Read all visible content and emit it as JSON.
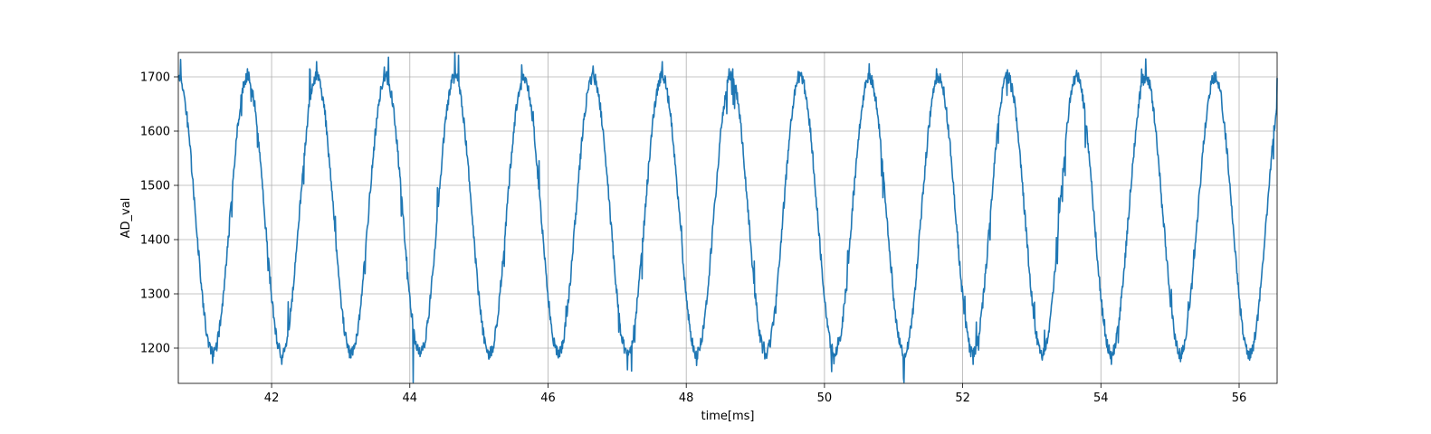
{
  "chart_data": {
    "type": "line",
    "title": "",
    "xlabel": "time[ms]",
    "ylabel": "AD_val",
    "xlim": [
      40.65,
      56.55
    ],
    "ylim": [
      1135,
      1745
    ],
    "xticks": [
      42,
      44,
      46,
      48,
      50,
      52,
      54,
      56
    ],
    "yticks": [
      1200,
      1300,
      1400,
      1500,
      1600,
      1700
    ],
    "grid": true,
    "legend": "none",
    "series": [
      {
        "color": "#1f77b4",
        "signal": {
          "shape": "noisy-sine",
          "period_ms": 1.0,
          "center": 1445,
          "amplitude": 255,
          "first_peak_ms": 41.65,
          "x_start": 40.65,
          "x_end": 56.55
        },
        "peaks": [
          {
            "x": 40.68,
            "y": 1732
          },
          {
            "x": 41.65,
            "y": 1715
          },
          {
            "x": 42.65,
            "y": 1728
          },
          {
            "x": 43.63,
            "y": 1718
          },
          {
            "x": 44.65,
            "y": 1745
          },
          {
            "x": 45.62,
            "y": 1722
          },
          {
            "x": 46.65,
            "y": 1720
          },
          {
            "x": 47.65,
            "y": 1728
          },
          {
            "x": 48.62,
            "y": 1715
          },
          {
            "x": 49.62,
            "y": 1710
          },
          {
            "x": 50.65,
            "y": 1724
          },
          {
            "x": 51.62,
            "y": 1715
          },
          {
            "x": 52.65,
            "y": 1713
          },
          {
            "x": 53.65,
            "y": 1712
          },
          {
            "x": 54.65,
            "y": 1733
          },
          {
            "x": 55.62,
            "y": 1688
          },
          {
            "x": 56.55,
            "y": 1698
          }
        ],
        "troughs": [
          {
            "x": 41.15,
            "y": 1172
          },
          {
            "x": 42.15,
            "y": 1170
          },
          {
            "x": 43.15,
            "y": 1182
          },
          {
            "x": 44.05,
            "y": 1137
          },
          {
            "x": 45.15,
            "y": 1180
          },
          {
            "x": 46.15,
            "y": 1182
          },
          {
            "x": 47.15,
            "y": 1160
          },
          {
            "x": 48.15,
            "y": 1168
          },
          {
            "x": 49.15,
            "y": 1190
          },
          {
            "x": 50.1,
            "y": 1185
          },
          {
            "x": 51.15,
            "y": 1137
          },
          {
            "x": 52.15,
            "y": 1170
          },
          {
            "x": 53.15,
            "y": 1178
          },
          {
            "x": 54.15,
            "y": 1170
          },
          {
            "x": 55.15,
            "y": 1175
          },
          {
            "x": 56.15,
            "y": 1178
          }
        ]
      }
    ]
  }
}
